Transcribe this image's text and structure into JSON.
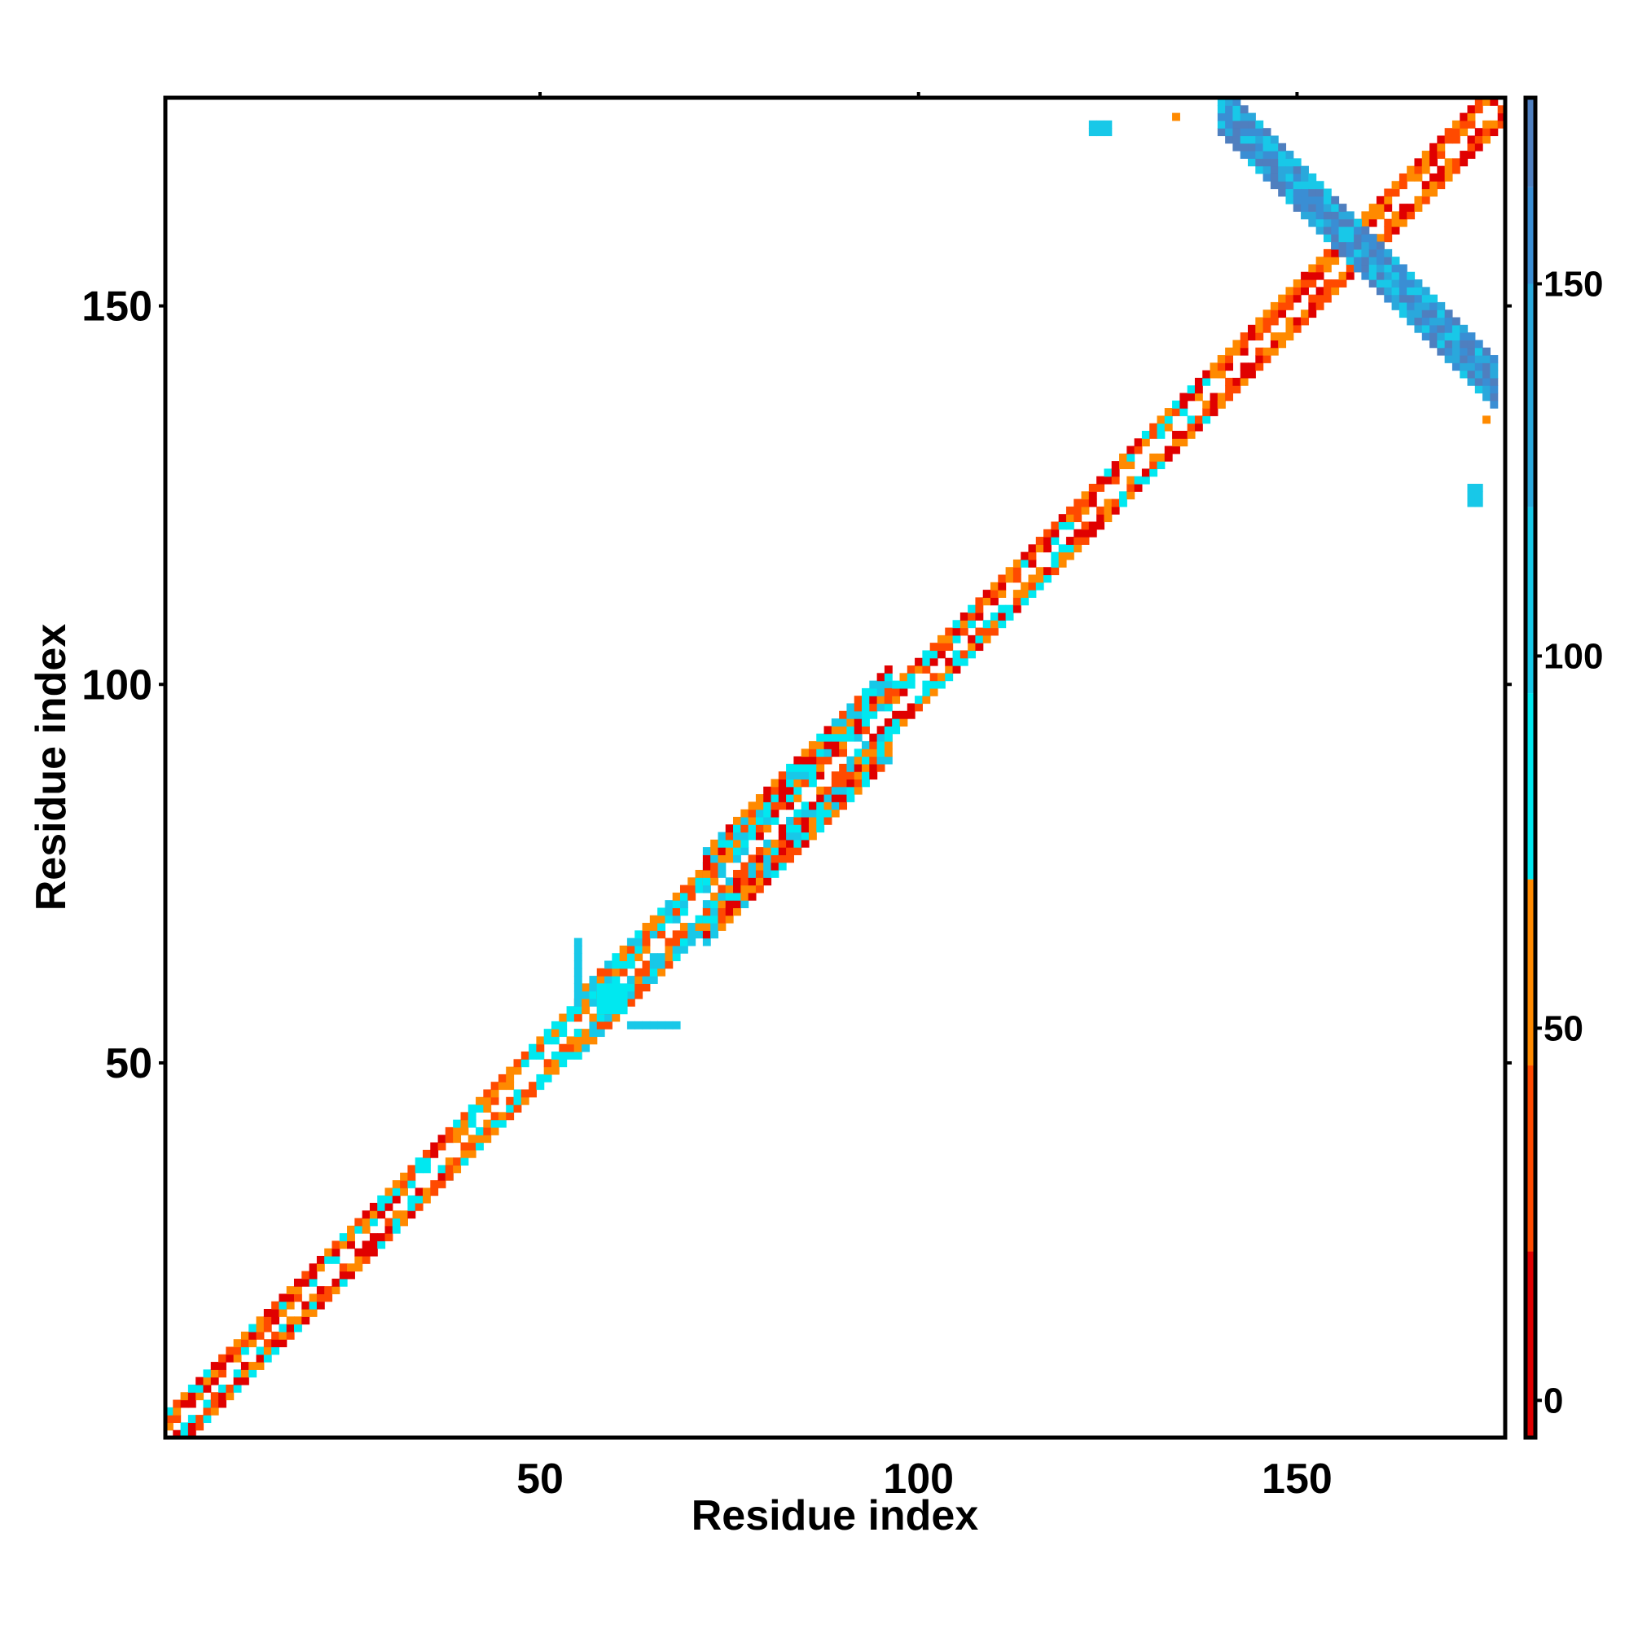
{
  "chart_data": {
    "type": "heatmap",
    "title": "",
    "xlabel": "Residue index",
    "ylabel": "Residue index",
    "xlim": [
      1,
      177
    ],
    "ylim": [
      1,
      177
    ],
    "x_ticks": [
      "50",
      "100",
      "150"
    ],
    "y_ticks": [
      "50",
      "100",
      "150"
    ],
    "grid": false,
    "legend": {
      "type": "colorbar",
      "placement": "right",
      "ticks": [
        "0",
        "50",
        "100",
        "150"
      ],
      "range": [
        -5,
        175
      ],
      "bands": [
        {
          "from": -5,
          "to": 20,
          "color": "#e00000"
        },
        {
          "from": 20,
          "to": 45,
          "color": "#ff4a00"
        },
        {
          "from": 45,
          "to": 70,
          "color": "#ff8a00"
        },
        {
          "from": 70,
          "to": 95,
          "color": "#00e8f0"
        },
        {
          "from": 95,
          "to": 120,
          "color": "#18c8e8"
        },
        {
          "from": 120,
          "to": 150,
          "color": "#2aa8dc"
        },
        {
          "from": 150,
          "to": 163,
          "color": "#3a8ed4"
        },
        {
          "from": 163,
          "to": 175,
          "color": "#4f7fbf"
        }
      ]
    },
    "features": [
      {
        "kind": "diagonal_band",
        "from": 1,
        "to": 38,
        "width": 3,
        "colors": [
          "#ff4a00",
          "#e00000",
          "#ff8a00",
          "#00e8f0"
        ]
      },
      {
        "kind": "diagonal_band",
        "from": 38,
        "to": 55,
        "width": 3,
        "colors": [
          "#00e8f0",
          "#ff4a00",
          "#ff8a00"
        ]
      },
      {
        "kind": "diagonal_band",
        "from": 55,
        "to": 72,
        "width": 4,
        "colors": [
          "#ff4a00",
          "#ff8a00",
          "#00e8f0",
          "#18c8e8"
        ]
      },
      {
        "kind": "diagonal_band",
        "from": 72,
        "to": 96,
        "width": 6,
        "colors": [
          "#00e8f0",
          "#ff4a00",
          "#e00000",
          "#ff8a00",
          "#18c8e8"
        ]
      },
      {
        "kind": "diagonal_band",
        "from": 96,
        "to": 140,
        "width": 3,
        "colors": [
          "#ff8a00",
          "#ff4a00",
          "#00e8f0",
          "#e00000"
        ]
      },
      {
        "kind": "diagonal_band",
        "from": 140,
        "to": 177,
        "width": 3,
        "colors": [
          "#ff4a00",
          "#e00000",
          "#ff8a00"
        ]
      },
      {
        "kind": "antidiagonal_band",
        "from_x": 140,
        "to_x": 176,
        "sum": 316,
        "width": 3,
        "colors": [
          "#4f7fbf",
          "#3a8ed4",
          "#2aa8dc",
          "#18c8e8"
        ]
      },
      {
        "kind": "patch",
        "x": 123,
        "y": 173,
        "w": 3,
        "h": 2,
        "color": "#18c8e8"
      },
      {
        "kind": "patch",
        "x": 173,
        "y": 124,
        "w": 2,
        "h": 3,
        "color": "#18c8e8"
      },
      {
        "kind": "patch",
        "x": 134,
        "y": 175,
        "w": 1,
        "h": 1,
        "color": "#ff8a00"
      },
      {
        "kind": "patch",
        "x": 175,
        "y": 135,
        "w": 1,
        "h": 1,
        "color": "#ff8a00"
      },
      {
        "kind": "patch",
        "x": 55,
        "y": 60,
        "w": 1,
        "h": 7,
        "color": "#18c8e8"
      },
      {
        "kind": "patch",
        "x": 62,
        "y": 55,
        "w": 7,
        "h": 1,
        "color": "#18c8e8"
      },
      {
        "kind": "patch",
        "x": 58,
        "y": 57,
        "w": 4,
        "h": 4,
        "color": "#00e8f0"
      }
    ]
  }
}
